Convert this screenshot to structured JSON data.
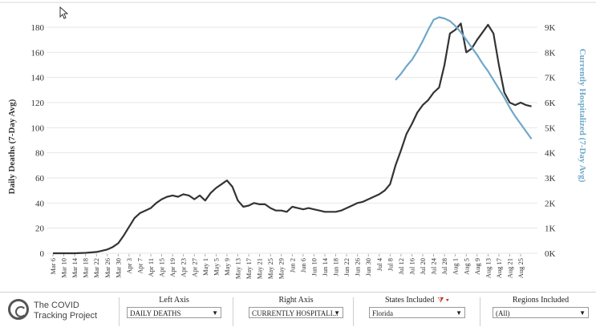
{
  "chart_data": {
    "type": "line",
    "title": "",
    "xlabel": "",
    "ylabel_left": "Daily Deaths (7-Day Avg)",
    "ylabel_right": "Currently Hospitalized (7-Day Avg)",
    "ylim_left": [
      0,
      180
    ],
    "ylim_right": [
      0,
      9000
    ],
    "yticks_left": [
      "0",
      "20",
      "40",
      "60",
      "80",
      "100",
      "120",
      "140",
      "160",
      "180"
    ],
    "yticks_right": [
      "0K",
      "1K",
      "2K",
      "3K",
      "4K",
      "5K",
      "6K",
      "7K",
      "8K",
      "9K"
    ],
    "x_tick_labels": [
      "Mar 6",
      "Mar 10",
      "Mar 14",
      "Mar 18",
      "Mar 22",
      "Mar 26",
      "Mar 30",
      "Apr 3",
      "Apr 7",
      "Apr 11",
      "Apr 15",
      "Apr 19",
      "Apr 23",
      "Apr 27",
      "May 1",
      "May 5",
      "May 9",
      "May 13",
      "May 17",
      "May 21",
      "May 25",
      "May 29",
      "Jun 2",
      "Jun 6",
      "Jun 10",
      "Jun 14",
      "Jun 18",
      "Jun 22",
      "Jun 26",
      "Jun 30",
      "Jul 4",
      "Jul 8",
      "Jul 12",
      "Jul 16",
      "Jul 20",
      "Jul 24",
      "Jul 28",
      "Aug 1",
      "Aug 5",
      "Aug 9",
      "Aug 13",
      "Aug 17",
      "Aug 21",
      "Aug 25"
    ],
    "grid": true,
    "series": [
      {
        "axis": "left",
        "color": "#333333",
        "x": [
          "Mar 6",
          "Mar 10",
          "Mar 14",
          "Mar 18",
          "Mar 22",
          "Mar 24",
          "Mar 26",
          "Mar 28",
          "Mar 30",
          "Apr 1",
          "Apr 3",
          "Apr 5",
          "Apr 7",
          "Apr 9",
          "Apr 11",
          "Apr 13",
          "Apr 15",
          "Apr 17",
          "Apr 19",
          "Apr 21",
          "Apr 23",
          "Apr 25",
          "Apr 27",
          "Apr 29",
          "May 1",
          "May 3",
          "May 5",
          "May 7",
          "May 9",
          "May 11",
          "May 13",
          "May 15",
          "May 17",
          "May 19",
          "May 21",
          "May 23",
          "May 25",
          "May 27",
          "May 29",
          "May 31",
          "Jun 2",
          "Jun 4",
          "Jun 6",
          "Jun 8",
          "Jun 10",
          "Jun 12",
          "Jun 14",
          "Jun 16",
          "Jun 18",
          "Jun 20",
          "Jun 22",
          "Jun 24",
          "Jun 26",
          "Jun 28",
          "Jun 30",
          "Jul 2",
          "Jul 4",
          "Jul 6",
          "Jul 8",
          "Jul 10",
          "Jul 12",
          "Jul 14",
          "Jul 16",
          "Jul 18",
          "Jul 20",
          "Jul 22",
          "Jul 24",
          "Jul 26",
          "Jul 28",
          "Jul 30",
          "Aug 1",
          "Aug 3",
          "Aug 5",
          "Aug 7",
          "Aug 9",
          "Aug 11",
          "Aug 13",
          "Aug 15",
          "Aug 17",
          "Aug 19",
          "Aug 21",
          "Aug 23",
          "Aug 25",
          "Aug 27",
          "Aug 29"
        ],
        "values": [
          0,
          0,
          0,
          0.3,
          1,
          2,
          3,
          5,
          8,
          14,
          21,
          28,
          32,
          34,
          36,
          40,
          43,
          45,
          46,
          45,
          47,
          46,
          43,
          46,
          42,
          48,
          52,
          55,
          58,
          53,
          42,
          37,
          38,
          40,
          39,
          39,
          36,
          34,
          34,
          33,
          37,
          36,
          35,
          36,
          35,
          34,
          33,
          33,
          33,
          34,
          36,
          38,
          40,
          41,
          43,
          45,
          47,
          50,
          55,
          70,
          82,
          95,
          103,
          112,
          118,
          122,
          128,
          132,
          150,
          175,
          178,
          183,
          160,
          163,
          170,
          176,
          182,
          175,
          150,
          128,
          120,
          118,
          120,
          118,
          117
        ]
      },
      {
        "axis": "right",
        "color": "#6fa8c8",
        "x": [
          "Jul 10",
          "Jul 12",
          "Jul 14",
          "Jul 16",
          "Jul 18",
          "Jul 20",
          "Jul 22",
          "Jul 24",
          "Jul 26",
          "Jul 28",
          "Jul 30",
          "Aug 1",
          "Aug 3",
          "Aug 5",
          "Aug 7",
          "Aug 9",
          "Aug 11",
          "Aug 13",
          "Aug 15",
          "Aug 17",
          "Aug 19",
          "Aug 21",
          "Aug 23",
          "Aug 25",
          "Aug 27",
          "Aug 29"
        ],
        "values": [
          6900,
          7150,
          7450,
          7700,
          8050,
          8450,
          8900,
          9300,
          9400,
          9350,
          9250,
          9050,
          8800,
          8500,
          8200,
          7900,
          7550,
          7250,
          6900,
          6550,
          6200,
          5800,
          5450,
          5150,
          4850,
          4550
        ]
      }
    ]
  },
  "footer": {
    "logo_line1": "The COVID",
    "logo_line2": "Tracking Project",
    "left_axis_label": "Left Axis",
    "left_axis_value": "DAILY DEATHS",
    "right_axis_label": "Right Axis",
    "right_axis_value": "CURRENTLY HOSPITALI...",
    "states_label": "States Included",
    "states_value": "Florida",
    "regions_label": "Regions Included",
    "regions_value": "(All)",
    "dropdown_arrow": "▼",
    "filter_glyph": "⧩ ▾"
  }
}
